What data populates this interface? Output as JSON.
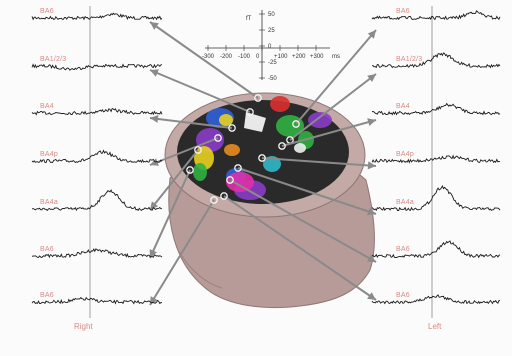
{
  "left_panel": {
    "side_label": "Right",
    "traces": [
      {
        "label": "BA6"
      },
      {
        "label": "BA1/2/3"
      },
      {
        "label": "BA4"
      },
      {
        "label": "BA4p"
      },
      {
        "label": "BA4a"
      },
      {
        "label": "BA6"
      },
      {
        "label": "BA6"
      }
    ]
  },
  "right_panel": {
    "side_label": "Left",
    "traces": [
      {
        "label": "BA6"
      },
      {
        "label": "BA1/2/3"
      },
      {
        "label": "BA4"
      },
      {
        "label": "BA4p"
      },
      {
        "label": "BA4a"
      },
      {
        "label": "BA6"
      },
      {
        "label": "BA6"
      }
    ]
  },
  "scale": {
    "y_unit": "fT",
    "x_unit": "ms",
    "y_ticks": [
      "50",
      "25",
      "0",
      "-25",
      "-50"
    ],
    "x_ticks": [
      "-300",
      "-200",
      "-100",
      "0",
      "+100",
      "+200",
      "+300"
    ]
  },
  "colors": {
    "trace": "#1a1a1a",
    "label": "#d88a84",
    "arrow": "#8a8a8a",
    "head": "#b39a97"
  },
  "brain_regions": [
    "blue",
    "green",
    "purple",
    "yellow",
    "magenta",
    "red",
    "orange",
    "cyan",
    "white"
  ]
}
